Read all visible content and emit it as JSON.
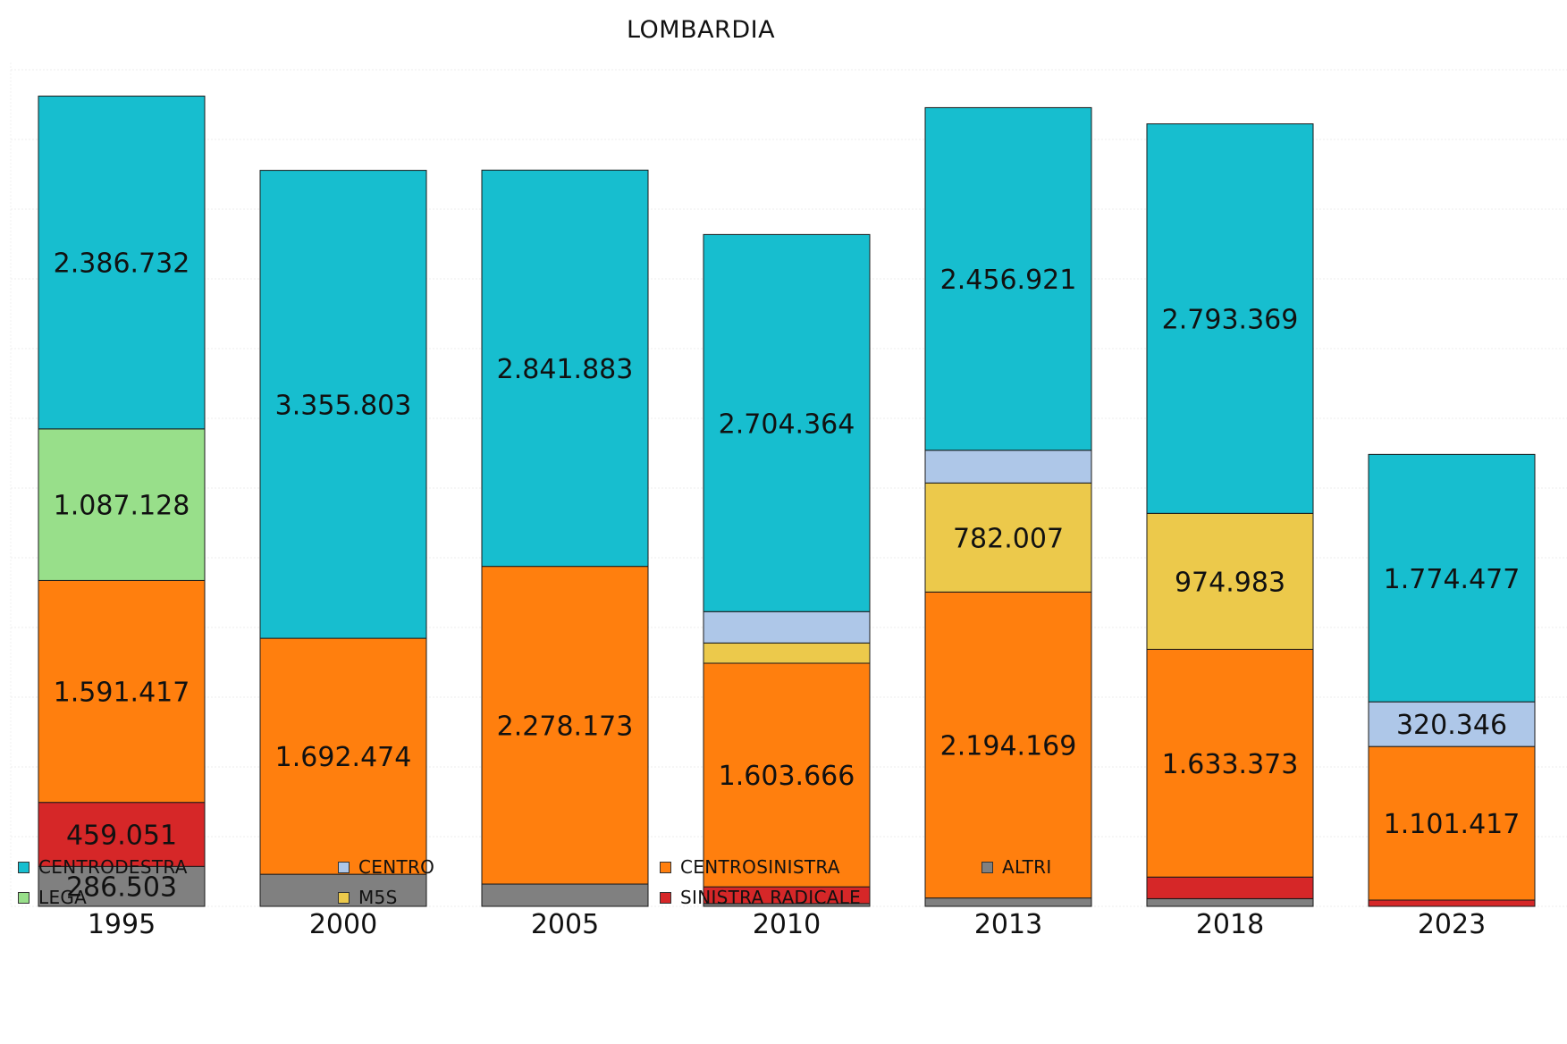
{
  "chart_data": {
    "type": "bar",
    "stacked": true,
    "title": "LOMBARDIA",
    "categories": [
      "1995",
      "2000",
      "2005",
      "2010",
      "2013",
      "2018",
      "2023"
    ],
    "series": [
      {
        "name": "ALTRI",
        "color": "#808080",
        "values": [
          286503,
          230000,
          160000,
          20000,
          60000,
          55000,
          0
        ],
        "labels": [
          "286.503",
          "",
          "",
          "",
          "",
          "",
          ""
        ]
      },
      {
        "name": "SINISTRA RADICALE",
        "color": "#d62728",
        "values": [
          459051,
          0,
          0,
          120000,
          0,
          155000,
          45000
        ],
        "labels": [
          "459.051",
          "",
          "",
          "",
          "",
          "",
          ""
        ]
      },
      {
        "name": "CENTROSINISTRA",
        "color": "#ff7f0e",
        "values": [
          1591417,
          1692474,
          2278173,
          1603666,
          2194169,
          1633373,
          1101417
        ],
        "labels": [
          "1.591.417",
          "1.692.474",
          "2.278.173",
          "1.603.666",
          "2.194.169",
          "1.633.373",
          "1.101.417"
        ]
      },
      {
        "name": "M5S",
        "color": "#ecc94b",
        "values": [
          0,
          0,
          0,
          145000,
          782007,
          974983,
          0
        ],
        "labels": [
          "",
          "",
          "",
          "",
          "782.007",
          "974.983",
          ""
        ]
      },
      {
        "name": "LEGA",
        "color": "#98df8a",
        "values": [
          1087128,
          0,
          0,
          0,
          0,
          0,
          0
        ],
        "labels": [
          "1.087.128",
          "",
          "",
          "",
          "",
          "",
          ""
        ]
      },
      {
        "name": "CENTRO",
        "color": "#aec7e8",
        "values": [
          0,
          0,
          0,
          225000,
          235000,
          0,
          320346
        ],
        "labels": [
          "",
          "",
          "",
          "",
          "",
          "",
          "320.346"
        ]
      },
      {
        "name": "CENTRODESTRA",
        "color": "#17becf",
        "values": [
          2386732,
          3355803,
          2841883,
          2704364,
          2456921,
          2793369,
          1774477
        ],
        "labels": [
          "2.386.732",
          "3.355.803",
          "2.841.883",
          "2.704.364",
          "2.456.921",
          "2.793.369",
          "1.774.477"
        ]
      }
    ],
    "ylim": [
      0,
      6000000
    ],
    "grid": true,
    "legend": "bottom",
    "legend_order": [
      "CENTRODESTRA",
      "CENTRO",
      "CENTROSINISTRA",
      "ALTRI",
      "LEGA",
      "M5S",
      "SINISTRA RADICALE"
    ]
  }
}
